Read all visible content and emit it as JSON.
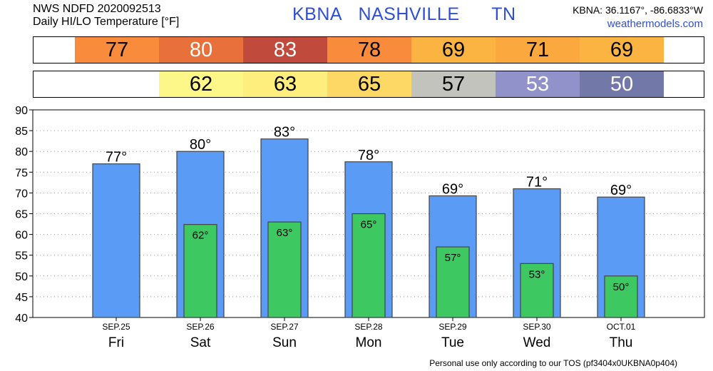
{
  "header": {
    "line1": "NWS NDFD 2020092513",
    "line2": "Daily HI/LO Temperature [°F]",
    "station": "KBNA",
    "city": "NASHVILLE",
    "state": "TN",
    "coords": "KBNA: 36.1167°, -86.6833°W",
    "site": "weathermodels.com"
  },
  "high_strip": [
    {
      "value": "77",
      "bg": "#f98c3c",
      "fg": "#000000"
    },
    {
      "value": "80",
      "bg": "#e8703a",
      "fg": "#ffffff"
    },
    {
      "value": "83",
      "bg": "#c04a3c",
      "fg": "#ffffff"
    },
    {
      "value": "78",
      "bg": "#f98c3c",
      "fg": "#000000"
    },
    {
      "value": "69",
      "bg": "#fbb442",
      "fg": "#000000"
    },
    {
      "value": "71",
      "bg": "#fba83e",
      "fg": "#000000"
    },
    {
      "value": "69",
      "bg": "#fbb442",
      "fg": "#000000"
    }
  ],
  "low_strip": [
    {
      "value": "",
      "bg": "#ffffff",
      "fg": "#000000"
    },
    {
      "value": "62",
      "bg": "#fdf688",
      "fg": "#000000"
    },
    {
      "value": "63",
      "bg": "#fdee7e",
      "fg": "#000000"
    },
    {
      "value": "65",
      "bg": "#fdd865",
      "fg": "#000000"
    },
    {
      "value": "57",
      "bg": "#c3c3bd",
      "fg": "#000000"
    },
    {
      "value": "53",
      "bg": "#9292cb",
      "fg": "#ffffff"
    },
    {
      "value": "50",
      "bg": "#7279a8",
      "fg": "#ffffff"
    }
  ],
  "chart_data": {
    "type": "bar",
    "categories": [
      "Fri",
      "Sat",
      "Sun",
      "Mon",
      "Tue",
      "Wed",
      "Thu"
    ],
    "dates": [
      "SEP.25",
      "SEP.26",
      "SEP.27",
      "SEP.28",
      "SEP.29",
      "SEP.30",
      "OCT.01"
    ],
    "series": [
      {
        "values": [
          77,
          80,
          83,
          77.5,
          69.3,
          71,
          69
        ],
        "labels": [
          "77°",
          "80°",
          "83°",
          "78°",
          "69°",
          "71°",
          "69°"
        ],
        "color": "#5a9cf5"
      },
      {
        "values": [
          null,
          62.4,
          63,
          65,
          57,
          53,
          50
        ],
        "labels": [
          "",
          "62°",
          "63°",
          "65°",
          "57°",
          "53°",
          "50°"
        ],
        "color": "#3ec862"
      }
    ],
    "ylim": [
      40,
      90
    ],
    "yticks": [
      40,
      45,
      50,
      55,
      60,
      65,
      70,
      75,
      80,
      85,
      90
    ],
    "grid": true
  },
  "footer": "Personal use only according to our TOS (pf3404x0UKBNA0p404)"
}
